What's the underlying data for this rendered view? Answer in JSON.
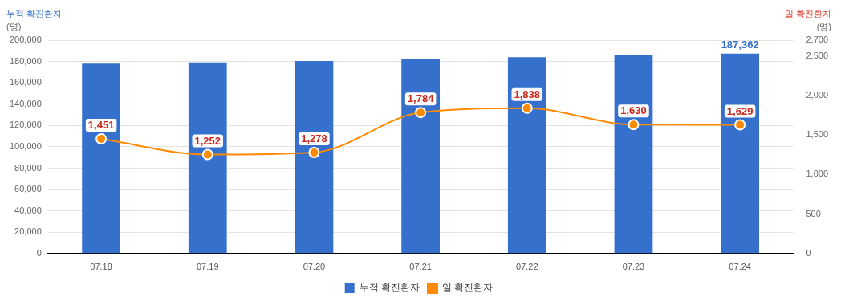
{
  "chart_data": {
    "type": "bar",
    "categories": [
      "07.18",
      "07.19",
      "07.20",
      "07.21",
      "07.22",
      "07.23",
      "07.24"
    ],
    "series": [
      {
        "name": "누적 확진환자",
        "color": "#3570cc",
        "values": [
          178000,
          179200,
          180500,
          182300,
          184100,
          185700,
          187362
        ],
        "value_labels": [
          null,
          null,
          null,
          null,
          null,
          null,
          "187,362"
        ]
      },
      {
        "name": "일 확진환자",
        "type": "line",
        "axis": "y2",
        "color": "#ff8a00",
        "values": [
          1451,
          1252,
          1278,
          1784,
          1838,
          1630,
          1629
        ],
        "value_labels": [
          "1,451",
          "1,252",
          "1,278",
          "1,784",
          "1,838",
          "1,630",
          "1,629"
        ]
      }
    ],
    "ylabel": "누적 확진환자\n(명)",
    "y2label": "일 확진환자\n(명)",
    "ylim": [
      0,
      200000
    ],
    "yticks": [
      0,
      {
        "value": 20000,
        "label": "20,000"
      },
      {
        "value": 40000,
        "label": "40,000"
      },
      {
        "value": 60000,
        "label": "60,000"
      },
      {
        "value": 80000,
        "label": "80,000"
      },
      {
        "value": 100000,
        "label": "100,000"
      },
      {
        "value": 120000,
        "label": "120,000"
      },
      {
        "value": 140000,
        "label": "140,000"
      },
      {
        "value": 160000,
        "label": "160,000"
      },
      {
        "value": 180000,
        "label": "180,000"
      },
      {
        "value": 200000,
        "label": "200,000"
      }
    ],
    "y2lim": [
      0,
      2700
    ],
    "y2ticks": [
      0,
      500,
      {
        "value": 1000,
        "label": "1,000"
      },
      {
        "value": 1500,
        "label": "1,500"
      },
      {
        "value": 2000,
        "label": "2,000"
      },
      {
        "value": 2500,
        "label": "2,500"
      },
      {
        "value": 2700,
        "label": "2,700"
      }
    ],
    "grid": "y",
    "legend": "bottom",
    "marker": "circle",
    "line_style": "solid"
  }
}
